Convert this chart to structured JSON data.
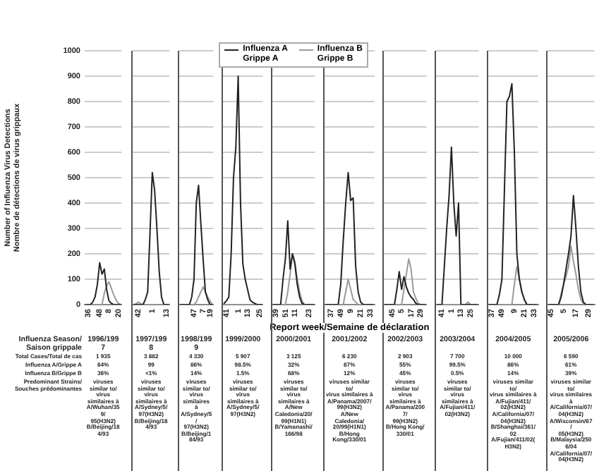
{
  "chart_data": [
    {
      "type": "line",
      "ylabel": "Number of Influenza Virus Detections\nNombre de détections de virus grippaux",
      "grid": "y",
      "ylim": [
        0,
        1000
      ],
      "yticks": [
        0,
        100,
        200,
        300,
        400,
        500,
        600,
        700,
        800,
        900,
        1000
      ],
      "categories": [
        null,
        "36",
        null,
        null,
        null,
        null,
        "48",
        null,
        null,
        null,
        "8",
        null,
        null,
        null,
        "20",
        null
      ],
      "series": [
        {
          "color": "#222222",
          "values": [
            0,
            0,
            0,
            10,
            30,
            80,
            165,
            120,
            140,
            60,
            15,
            5,
            0,
            0,
            0,
            0
          ]
        },
        {
          "color": "#9a9a9a",
          "values": [
            0,
            0,
            0,
            0,
            0,
            0,
            0,
            0,
            45,
            75,
            90,
            65,
            40,
            20,
            5,
            0
          ]
        }
      ],
      "annotations": [
        "Influenza Season/\nSaison grippale",
        "Total Cases/Total de cas",
        "Influenza A/Grippe A",
        "Influenza B/Grippe B",
        "Predominant Strains/\nSouches prédominantes",
        "1996/1997",
        "1 935",
        "64%",
        "36%",
        "viruses similar to/\nvirus similaires à\nA/Wuhan/359/\n95(H3N2)\nB/Beijing/184/93"
      ]
    },
    {
      "type": "line",
      "grid": "y",
      "tick_labels": "x",
      "ylim": [
        0,
        1000
      ],
      "yticks": [
        0,
        100,
        200,
        300,
        400,
        500,
        600,
        700,
        800,
        900,
        1000
      ],
      "categories": [
        null,
        null,
        "42",
        null,
        null,
        null,
        null,
        null,
        "1",
        null,
        null,
        null,
        null,
        null,
        "13",
        null
      ],
      "series": [
        {
          "color": "#222222",
          "values": [
            0,
            0,
            0,
            0,
            0,
            20,
            50,
            280,
            520,
            450,
            300,
            130,
            30,
            0,
            0,
            0
          ]
        },
        {
          "color": "#9a9a9a",
          "values": [
            0,
            3,
            10,
            3,
            0,
            0,
            0,
            0,
            0,
            0,
            0,
            0,
            0,
            0,
            0,
            0
          ]
        }
      ],
      "annotations": [
        "1997/1998",
        "3 882",
        "99",
        "<1%",
        "viruses similar to/\nvirus similaires à\nA/Sydney/5/\n97(H3N2)\nB/Beijing/184/93"
      ]
    },
    {
      "type": "line",
      "grid": "y",
      "tick_labels": "x",
      "ylim": [
        0,
        1000
      ],
      "yticks": [
        0,
        100,
        200,
        300,
        400,
        500,
        600,
        700,
        800,
        900,
        1000
      ],
      "categories": [
        null,
        null,
        null,
        null,
        null,
        null,
        "47",
        null,
        null,
        null,
        "7",
        null,
        null,
        "19",
        null
      ],
      "series": [
        {
          "color": "#222222",
          "values": [
            0,
            0,
            0,
            0,
            0,
            30,
            100,
            400,
            470,
            320,
            180,
            50,
            20,
            0,
            0
          ]
        },
        {
          "color": "#9a9a9a",
          "values": [
            0,
            0,
            0,
            0,
            0,
            0,
            0,
            10,
            30,
            50,
            70,
            50,
            30,
            15,
            0
          ]
        }
      ],
      "annotations": [
        "1998/1999",
        "4 330",
        "86%",
        "14%",
        "viruses similar to/\nvirus similaires à\nA/Sydney/5/\n97(H3N2)\nB/Beijing/184/93"
      ]
    },
    {
      "type": "line",
      "grid": "y",
      "tick_labels": "x",
      "ylim": [
        0,
        1000
      ],
      "yticks": [
        0,
        100,
        200,
        300,
        400,
        500,
        600,
        700,
        800,
        900,
        1000
      ],
      "categories": [
        null,
        "41",
        null,
        null,
        null,
        null,
        "1",
        null,
        null,
        null,
        "13",
        null,
        null,
        null,
        null,
        "25",
        null
      ],
      "series": [
        {
          "color": "#222222",
          "values": [
            5,
            15,
            30,
            200,
            500,
            620,
            900,
            400,
            160,
            100,
            60,
            20,
            10,
            5,
            0,
            0,
            0
          ]
        },
        {
          "color": "#9a9a9a",
          "values": [
            0,
            0,
            0,
            0,
            0,
            0,
            0,
            0,
            0,
            0,
            0,
            0,
            0,
            0,
            0,
            0,
            0
          ]
        }
      ],
      "annotations": [
        "1999/2000",
        "5 907",
        "98.5%",
        "1.5%",
        "viruses similar to/\nvirus similaires à\nA/Sydney/5/\n97(H3N2)"
      ]
    },
    {
      "type": "line",
      "grid": "y",
      "tick_labels": "x",
      "legend": "top",
      "ylim": [
        0,
        1000
      ],
      "yticks": [
        0,
        100,
        200,
        300,
        400,
        500,
        600,
        700,
        800,
        900,
        1000
      ],
      "categories": [
        null,
        "39",
        null,
        null,
        null,
        "51",
        null,
        null,
        null,
        "11",
        null,
        null,
        null,
        null,
        null,
        "23",
        null,
        null
      ],
      "series": [
        {
          "name": "Influenza A\nGrippe A",
          "color": "#222222",
          "values": [
            0,
            0,
            0,
            0,
            100,
            180,
            330,
            140,
            200,
            160,
            80,
            30,
            5,
            0,
            0,
            0,
            0,
            0
          ]
        },
        {
          "name": "Influenza B\nGrippe B",
          "color": "#9a9a9a",
          "values": [
            0,
            0,
            0,
            0,
            0,
            0,
            50,
            120,
            200,
            170,
            100,
            50,
            15,
            0,
            0,
            0,
            0,
            0
          ]
        }
      ],
      "annotations": [
        "2000/2001",
        "3 125",
        "32%",
        "68%",
        "viruses similar to/\nvirus similaires à\nA/New\nCaledonia/20/\n99(H1N1)\nB/Yamanashi/\n166/98"
      ]
    },
    {
      "type": "line",
      "grid": "y",
      "tick_labels": "x",
      "xlabel": "Report week/Semaine de déclaration",
      "ylim": [
        0,
        1000
      ],
      "yticks": [
        0,
        100,
        200,
        300,
        400,
        500,
        600,
        700,
        800,
        900,
        1000
      ],
      "categories": [
        null,
        null,
        "37",
        null,
        null,
        null,
        "49",
        null,
        null,
        null,
        "9",
        null,
        null,
        null,
        "21",
        null,
        null,
        null,
        "33",
        null
      ],
      "series": [
        {
          "color": "#222222",
          "values": [
            0,
            0,
            0,
            0,
            0,
            0,
            80,
            250,
            400,
            520,
            410,
            420,
            150,
            50,
            10,
            0,
            0,
            0,
            0,
            0
          ]
        },
        {
          "color": "#9a9a9a",
          "values": [
            0,
            0,
            0,
            0,
            0,
            0,
            0,
            0,
            50,
            100,
            60,
            20,
            10,
            0,
            0,
            0,
            0,
            0,
            0,
            0
          ]
        }
      ],
      "annotations": [
        "2001/2002",
        "6 230",
        "87%",
        "12%",
        "viruses similar to/\nvirus similaires à\nA/Panama/2007/\n99(H3N2)\nA/New Caledonia/\n20/99(H1N1)\nB/Hong Kong/330/01"
      ]
    },
    {
      "type": "line",
      "grid": "y",
      "tick_labels": "x",
      "ylim": [
        0,
        1000
      ],
      "yticks": [
        0,
        100,
        200,
        300,
        400,
        500,
        600,
        700,
        800,
        900,
        1000
      ],
      "categories": [
        null,
        null,
        null,
        "45",
        null,
        null,
        null,
        "5",
        null,
        null,
        null,
        "17",
        null,
        null,
        null,
        "29",
        null,
        null
      ],
      "series": [
        {
          "color": "#222222",
          "values": [
            0,
            0,
            0,
            0,
            0,
            60,
            130,
            60,
            110,
            70,
            45,
            30,
            20,
            5,
            0,
            0,
            0,
            0
          ]
        },
        {
          "color": "#9a9a9a",
          "values": [
            0,
            0,
            0,
            0,
            0,
            0,
            0,
            0,
            60,
            120,
            180,
            140,
            50,
            25,
            5,
            0,
            0,
            0
          ]
        }
      ],
      "annotations": [
        "2002/2003",
        "2 903",
        "55%",
        "45%",
        "viruses similar to/\nvirus similaires à\nA/Panama/2007/\n99(H3N2)\nB/Hong Kong/\n330/01"
      ]
    },
    {
      "type": "line",
      "grid": "y",
      "tick_labels": "x",
      "ylim": [
        0,
        1000
      ],
      "yticks": [
        0,
        100,
        200,
        300,
        400,
        500,
        600,
        700,
        800,
        900,
        1000
      ],
      "categories": [
        null,
        null,
        "41",
        null,
        null,
        null,
        "1",
        null,
        null,
        null,
        "13",
        null,
        null,
        null,
        "25",
        null,
        null,
        null
      ],
      "series": [
        {
          "color": "#222222",
          "values": [
            0,
            0,
            0,
            150,
            300,
            430,
            620,
            400,
            270,
            400,
            0,
            0,
            0,
            0,
            0,
            0,
            0,
            0
          ]
        },
        {
          "color": "#9a9a9a",
          "values": [
            0,
            0,
            0,
            0,
            0,
            0,
            0,
            0,
            0,
            0,
            0,
            0,
            0,
            10,
            0,
            0,
            0,
            0
          ]
        }
      ],
      "annotations": [
        "2003/2004",
        "7 700",
        "99.5%",
        "0.5%",
        "viruses similar to/\nvirus similaires à\nA/Fujian/411/\n02(H3N2)"
      ]
    },
    {
      "type": "line",
      "grid": "y",
      "tick_labels": "x",
      "ylim": [
        0,
        1000
      ],
      "yticks": [
        0,
        100,
        200,
        300,
        400,
        500,
        600,
        700,
        800,
        900,
        1000
      ],
      "categories": [
        null,
        "37",
        null,
        null,
        null,
        "49",
        null,
        null,
        null,
        null,
        "9",
        null,
        null,
        null,
        "21",
        null,
        null,
        null,
        "33",
        null
      ],
      "series": [
        {
          "color": "#222222",
          "values": [
            0,
            0,
            0,
            0,
            40,
            100,
            450,
            800,
            820,
            870,
            600,
            200,
            100,
            50,
            20,
            0,
            0,
            0,
            0,
            0
          ]
        },
        {
          "color": "#9a9a9a",
          "values": [
            0,
            0,
            0,
            0,
            0,
            0,
            0,
            0,
            0,
            0,
            80,
            150,
            100,
            50,
            20,
            0,
            0,
            0,
            0,
            0
          ]
        }
      ],
      "annotations": [
        "2004/2005",
        "10 000",
        "86%",
        "14%",
        "viruses similar to/\nvirus similaires à\nA/Fujian/411/\n02(H3N2)\nA/California/07/\n04(H3N2)\nB/Shanghai/361/02\nA/Fujian/411/02(H3N2)"
      ]
    },
    {
      "type": "line",
      "grid": "y",
      "tick_labels": "x",
      "ylim": [
        0,
        1000
      ],
      "yticks": [
        0,
        100,
        200,
        300,
        400,
        500,
        600,
        700,
        800,
        900,
        1000
      ],
      "categories": [
        null,
        "45",
        null,
        null,
        null,
        null,
        "5",
        null,
        null,
        null,
        null,
        "17",
        null,
        null,
        null,
        null,
        "29",
        null,
        null
      ],
      "series": [
        {
          "color": "#222222",
          "values": [
            0,
            0,
            0,
            0,
            0,
            30,
            80,
            140,
            200,
            270,
            430,
            300,
            150,
            50,
            10,
            0,
            0,
            0,
            0
          ]
        },
        {
          "color": "#9a9a9a",
          "values": [
            0,
            0,
            0,
            0,
            0,
            40,
            80,
            110,
            150,
            230,
            170,
            120,
            60,
            20,
            5,
            0,
            0,
            0,
            0
          ]
        }
      ],
      "annotations": [
        "2005/2006",
        "6 590",
        "61%",
        "39%",
        "viruses similar to/\nvirus similaires à\nA/California/07/\n04(H3N2)\nA/Wisconsin/67/\n05(H3N2)\nB/Malaysia/2506/04\nA/California/07/\n04(H3N2)"
      ]
    }
  ]
}
